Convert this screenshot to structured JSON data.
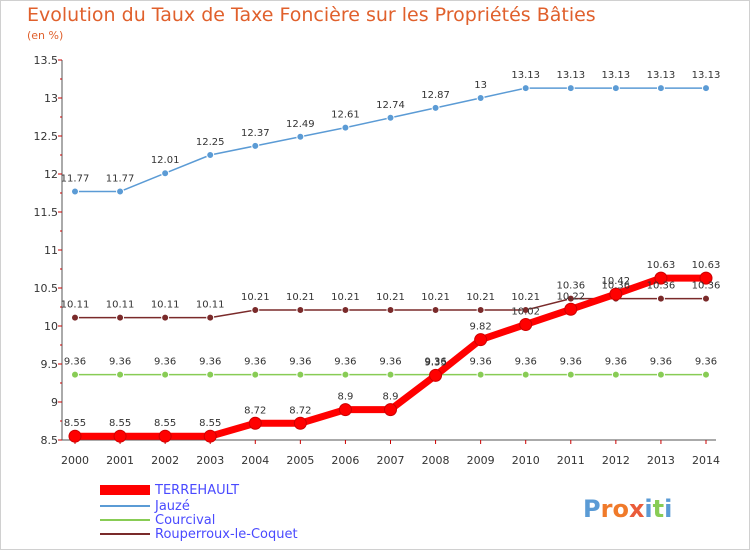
{
  "chart_data": {
    "type": "line",
    "title": "Evolution du Taux de Taxe Foncière sur les Propriétés Bâties",
    "subtitle": "(en %)",
    "x": [
      "2000",
      "2001",
      "2002",
      "2003",
      "2004",
      "2005",
      "2006",
      "2007",
      "2008",
      "2009",
      "2010",
      "2011",
      "2012",
      "2013",
      "2014"
    ],
    "ylim": [
      8.5,
      13.5
    ],
    "yticks": [
      "8.5",
      "9",
      "9.5",
      "10",
      "10.5",
      "11",
      "11.5",
      "12",
      "12.5",
      "13",
      "13.5"
    ],
    "grid": false,
    "legend": "bottom-left",
    "series": [
      {
        "name": "TERREHAULT",
        "color": "#ff0000",
        "values": [
          8.55,
          8.55,
          8.55,
          8.55,
          8.72,
          8.72,
          8.9,
          8.9,
          9.35,
          9.82,
          10.02,
          10.22,
          10.42,
          10.63,
          10.63
        ],
        "labels": [
          "8.55",
          "8.55",
          "8.55",
          "8.55",
          "8.72",
          "8.72",
          "8.9",
          "8.9",
          "9.35",
          "9.82",
          "10.02",
          "10.22",
          "10.42",
          "10.63",
          "10.63"
        ]
      },
      {
        "name": "Jauzé",
        "color": "#5b9bd5",
        "values": [
          11.77,
          11.77,
          12.01,
          12.25,
          12.37,
          12.49,
          12.61,
          12.74,
          12.87,
          13,
          13.13,
          13.13,
          13.13,
          13.13,
          13.13
        ],
        "labels": [
          "11.77",
          "11.77",
          "12.01",
          "12.25",
          "12.37",
          "12.49",
          "12.61",
          "12.74",
          "12.87",
          "13",
          "13.13",
          "13.13",
          "13.13",
          "13.13",
          "13.13"
        ]
      },
      {
        "name": "Courcival",
        "color": "#88cc55",
        "values": [
          9.36,
          9.36,
          9.36,
          9.36,
          9.36,
          9.36,
          9.36,
          9.36,
          9.36,
          9.36,
          9.36,
          9.36,
          9.36,
          9.36,
          9.36
        ],
        "labels": [
          "9.36",
          "9.36",
          "9.36",
          "9.36",
          "9.36",
          "9.36",
          "9.36",
          "9.36",
          "9.36",
          "9.36",
          "9.36",
          "9.36",
          "9.36",
          "9.36",
          "9.36"
        ]
      },
      {
        "name": "Rouperroux-le-Coquet",
        "color": "#7a2a2a",
        "values": [
          10.11,
          10.11,
          10.11,
          10.11,
          10.21,
          10.21,
          10.21,
          10.21,
          10.21,
          10.21,
          10.21,
          10.36,
          10.36,
          10.36,
          10.36
        ],
        "labels": [
          "10.11",
          "10.11",
          "10.11",
          "10.11",
          "10.21",
          "10.21",
          "10.21",
          "10.21",
          "10.21",
          "10.21",
          "10.21",
          "10.36",
          "10.36",
          "10.36",
          "10.36"
        ]
      }
    ]
  },
  "logo": {
    "text": "Proxiti"
  }
}
